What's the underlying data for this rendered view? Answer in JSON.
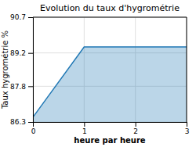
{
  "chart_data": {
    "type": "area",
    "title": "Evolution du taux d'hygrométrie",
    "xlabel": "heure par heure",
    "ylabel": "Taux hygrométrie %",
    "x": [
      0,
      1,
      3
    ],
    "values": [
      86.5,
      89.45,
      89.45
    ],
    "xlim": [
      0,
      3
    ],
    "ylim": [
      86.3,
      90.7
    ],
    "xticks": [
      0,
      1,
      2,
      3
    ],
    "yticks": [
      86.3,
      87.8,
      89.2,
      90.7
    ],
    "grid": true
  }
}
